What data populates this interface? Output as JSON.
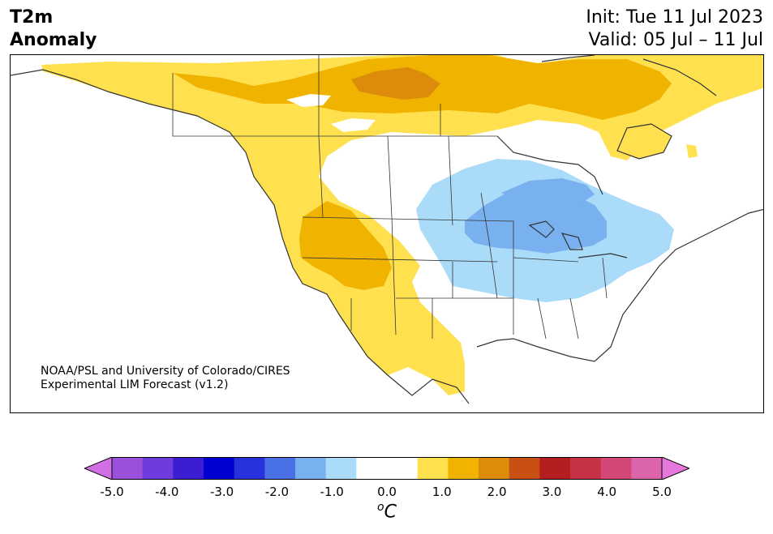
{
  "header": {
    "title_line1": "T2m",
    "title_line2": "Anomaly",
    "init_line": "Init: Tue 11 Jul 2023",
    "valid_line": "Valid: 05 Jul – 11 Jul"
  },
  "credit": {
    "line1": "NOAA/PSL and University of Colorado/CIRES",
    "line2": "Experimental LIM Forecast (v1.2)"
  },
  "colorbar": {
    "unit_base": "C",
    "unit_sup": "o",
    "ticks": [
      "-5.0",
      "-4.0",
      "-3.0",
      "-2.0",
      "-1.0",
      "0.0",
      "1.0",
      "2.0",
      "3.0",
      "4.0",
      "5.0"
    ],
    "colors": [
      "#d26ee6",
      "#9b50dc",
      "#6e3cdc",
      "#3c1ed2",
      "#0000d2",
      "#2832dc",
      "#4a70e6",
      "#78b0f0",
      "#aadcfa",
      "#ffffff",
      "#ffffff",
      "#ffe150",
      "#f0b400",
      "#dc8c0a",
      "#c85014",
      "#b41e1e",
      "#c83246",
      "#d24678",
      "#dc64aa",
      "#e678dc"
    ]
  },
  "map_colors": {
    "light_yellow": "#ffe150",
    "gold": "#f0b400",
    "orange": "#dc8c0a",
    "light_blue": "#aadcfa",
    "mid_blue": "#78b0f0",
    "blue": "#4a70e6",
    "borders": "#333333"
  }
}
